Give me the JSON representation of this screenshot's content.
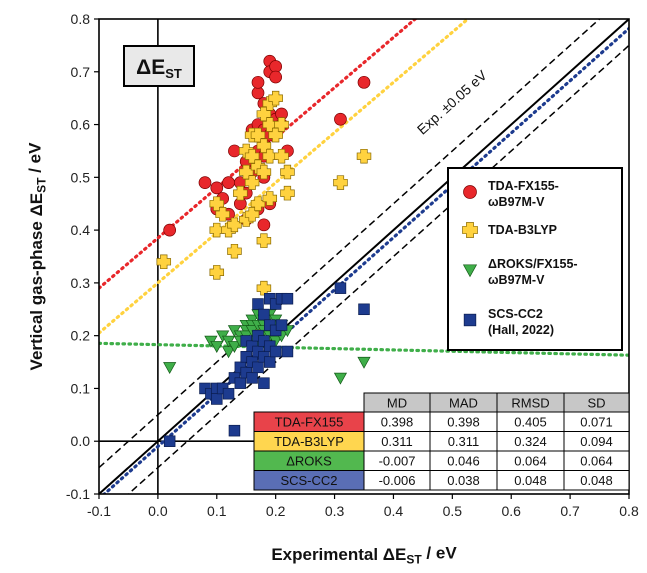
{
  "chart_data": {
    "type": "scatter",
    "title": "ΔEST",
    "xlabel": "Experimental ΔEST / eV",
    "ylabel": "Vertical gas-phase ΔEST / eV",
    "xlim": [
      -0.1,
      0.8
    ],
    "ylim": [
      -0.1,
      0.8
    ],
    "xticks": [
      "-0.1",
      "0.0",
      "0.1",
      "0.2",
      "0.3",
      "0.4",
      "0.5",
      "0.6",
      "0.7",
      "0.8"
    ],
    "yticks": [
      "-0.1",
      "0.0",
      "0.1",
      "0.2",
      "0.3",
      "0.4",
      "0.5",
      "0.6",
      "0.7",
      "0.8"
    ],
    "grid": false,
    "legend_position": "right",
    "annotation": "Exp. ±0.05 eV",
    "reference_lines": [
      {
        "name": "y = x",
        "offset": 0,
        "style": "solid"
      },
      {
        "name": "Exp. +0.05 eV",
        "offset": 0.05,
        "style": "dashed"
      },
      {
        "name": "Exp. -0.05 eV",
        "offset": -0.05,
        "style": "dashed"
      }
    ],
    "series": [
      {
        "name": "TDA-FX155-ωB97M-V",
        "marker": "circle",
        "color": "#e8272b",
        "fit": {
          "slope": 0.95,
          "intercept": 0.385
        },
        "points": [
          [
            0.02,
            0.4
          ],
          [
            0.08,
            0.49
          ],
          [
            0.1,
            0.48
          ],
          [
            0.1,
            0.44
          ],
          [
            0.11,
            0.46
          ],
          [
            0.12,
            0.49
          ],
          [
            0.12,
            0.43
          ],
          [
            0.13,
            0.55
          ],
          [
            0.14,
            0.49
          ],
          [
            0.14,
            0.45
          ],
          [
            0.15,
            0.53
          ],
          [
            0.15,
            0.47
          ],
          [
            0.15,
            0.42
          ],
          [
            0.16,
            0.59
          ],
          [
            0.16,
            0.51
          ],
          [
            0.17,
            0.6
          ],
          [
            0.17,
            0.66
          ],
          [
            0.17,
            0.68
          ],
          [
            0.17,
            0.55
          ],
          [
            0.17,
            0.44
          ],
          [
            0.18,
            0.64
          ],
          [
            0.18,
            0.59
          ],
          [
            0.18,
            0.57
          ],
          [
            0.18,
            0.54
          ],
          [
            0.18,
            0.5
          ],
          [
            0.18,
            0.41
          ],
          [
            0.19,
            0.72
          ],
          [
            0.19,
            0.7
          ],
          [
            0.19,
            0.62
          ],
          [
            0.19,
            0.58
          ],
          [
            0.19,
            0.45
          ],
          [
            0.2,
            0.71
          ],
          [
            0.2,
            0.69
          ],
          [
            0.2,
            0.61
          ],
          [
            0.21,
            0.62
          ],
          [
            0.21,
            0.6
          ],
          [
            0.22,
            0.55
          ],
          [
            0.31,
            0.61
          ],
          [
            0.35,
            0.68
          ]
        ]
      },
      {
        "name": "TDA-B3LYP",
        "marker": "plus",
        "color": "#ffd23f",
        "fit": {
          "slope": 0.95,
          "intercept": 0.3
        },
        "points": [
          [
            0.01,
            0.34
          ],
          [
            0.1,
            0.45
          ],
          [
            0.1,
            0.4
          ],
          [
            0.1,
            0.32
          ],
          [
            0.11,
            0.43
          ],
          [
            0.12,
            0.4
          ],
          [
            0.13,
            0.41
          ],
          [
            0.13,
            0.36
          ],
          [
            0.14,
            0.47
          ],
          [
            0.15,
            0.55
          ],
          [
            0.15,
            0.51
          ],
          [
            0.15,
            0.42
          ],
          [
            0.16,
            0.58
          ],
          [
            0.16,
            0.54
          ],
          [
            0.16,
            0.49
          ],
          [
            0.16,
            0.43
          ],
          [
            0.17,
            0.58
          ],
          [
            0.17,
            0.52
          ],
          [
            0.17,
            0.45
          ],
          [
            0.17,
            0.21
          ],
          [
            0.18,
            0.62
          ],
          [
            0.18,
            0.56
          ],
          [
            0.18,
            0.51
          ],
          [
            0.18,
            0.38
          ],
          [
            0.18,
            0.29
          ],
          [
            0.19,
            0.64
          ],
          [
            0.19,
            0.6
          ],
          [
            0.19,
            0.54
          ],
          [
            0.19,
            0.46
          ],
          [
            0.2,
            0.65
          ],
          [
            0.2,
            0.58
          ],
          [
            0.21,
            0.6
          ],
          [
            0.21,
            0.54
          ],
          [
            0.22,
            0.51
          ],
          [
            0.22,
            0.47
          ],
          [
            0.31,
            0.49
          ],
          [
            0.35,
            0.54
          ]
        ]
      },
      {
        "name": "ΔROKS/FX155-ωB97M-V",
        "marker": "triangle-down",
        "color": "#3fae49",
        "fit": {
          "slope": -0.025,
          "intercept": 0.183
        },
        "points": [
          [
            0.02,
            0.14
          ],
          [
            0.09,
            0.19
          ],
          [
            0.1,
            0.18
          ],
          [
            0.11,
            0.2
          ],
          [
            0.12,
            0.19
          ],
          [
            0.12,
            0.17
          ],
          [
            0.13,
            0.21
          ],
          [
            0.13,
            0.18
          ],
          [
            0.14,
            0.2
          ],
          [
            0.14,
            0.19
          ],
          [
            0.15,
            0.22
          ],
          [
            0.15,
            0.21
          ],
          [
            0.15,
            0.2
          ],
          [
            0.16,
            0.23
          ],
          [
            0.16,
            0.22
          ],
          [
            0.16,
            0.21
          ],
          [
            0.16,
            0.19
          ],
          [
            0.17,
            0.24
          ],
          [
            0.17,
            0.22
          ],
          [
            0.17,
            0.2
          ],
          [
            0.17,
            0.18
          ],
          [
            0.18,
            0.23
          ],
          [
            0.18,
            0.22
          ],
          [
            0.18,
            0.21
          ],
          [
            0.18,
            0.19
          ],
          [
            0.19,
            0.24
          ],
          [
            0.19,
            0.22
          ],
          [
            0.19,
            0.2
          ],
          [
            0.2,
            0.23
          ],
          [
            0.2,
            0.21
          ],
          [
            0.2,
            0.19
          ],
          [
            0.21,
            0.22
          ],
          [
            0.21,
            0.2
          ],
          [
            0.22,
            0.21
          ],
          [
            0.31,
            0.12
          ],
          [
            0.35,
            0.15
          ]
        ]
      },
      {
        "name": "SCS-CC2 (Hall, 2022)",
        "marker": "square",
        "color": "#1d3b8f",
        "fit": {
          "slope": 0.99,
          "intercept": -0.01
        },
        "points": [
          [
            0.02,
            0.0
          ],
          [
            0.08,
            0.1
          ],
          [
            0.09,
            0.09
          ],
          [
            0.1,
            0.1
          ],
          [
            0.1,
            0.08
          ],
          [
            0.11,
            0.1
          ],
          [
            0.12,
            0.09
          ],
          [
            0.13,
            0.02
          ],
          [
            0.13,
            0.12
          ],
          [
            0.14,
            0.14
          ],
          [
            0.14,
            0.11
          ],
          [
            0.15,
            0.16
          ],
          [
            0.15,
            0.13
          ],
          [
            0.15,
            0.19
          ],
          [
            0.16,
            0.18
          ],
          [
            0.16,
            0.15
          ],
          [
            0.16,
            0.12
          ],
          [
            0.17,
            0.26
          ],
          [
            0.17,
            0.2
          ],
          [
            0.17,
            0.17
          ],
          [
            0.17,
            0.14
          ],
          [
            0.18,
            0.24
          ],
          [
            0.18,
            0.19
          ],
          [
            0.18,
            0.16
          ],
          [
            0.18,
            0.11
          ],
          [
            0.19,
            0.27
          ],
          [
            0.19,
            0.22
          ],
          [
            0.19,
            0.18
          ],
          [
            0.19,
            0.15
          ],
          [
            0.2,
            0.26
          ],
          [
            0.2,
            0.21
          ],
          [
            0.2,
            0.17
          ],
          [
            0.21,
            0.27
          ],
          [
            0.21,
            0.22
          ],
          [
            0.22,
            0.27
          ],
          [
            0.22,
            0.17
          ],
          [
            0.31,
            0.29
          ],
          [
            0.35,
            0.25
          ]
        ]
      }
    ],
    "stats_table": {
      "columns": [
        "MD",
        "MAD",
        "RMSD",
        "SD"
      ],
      "rows": [
        {
          "label": "TDA-FX155",
          "color": "#e8434a",
          "values": [
            "0.398",
            "0.398",
            "0.405",
            "0.071"
          ]
        },
        {
          "label": "TDA-B3LYP",
          "color": "#ffd64f",
          "values": [
            "0.311",
            "0.311",
            "0.324",
            "0.094"
          ]
        },
        {
          "label": "ΔROKS",
          "color": "#52b84f",
          "values": [
            "-0.007",
            "0.046",
            "0.064",
            "0.064"
          ]
        },
        {
          "label": "SCS-CC2",
          "color": "#5a6eb5",
          "values": [
            "-0.006",
            "0.038",
            "0.048",
            "0.048"
          ]
        }
      ]
    }
  }
}
